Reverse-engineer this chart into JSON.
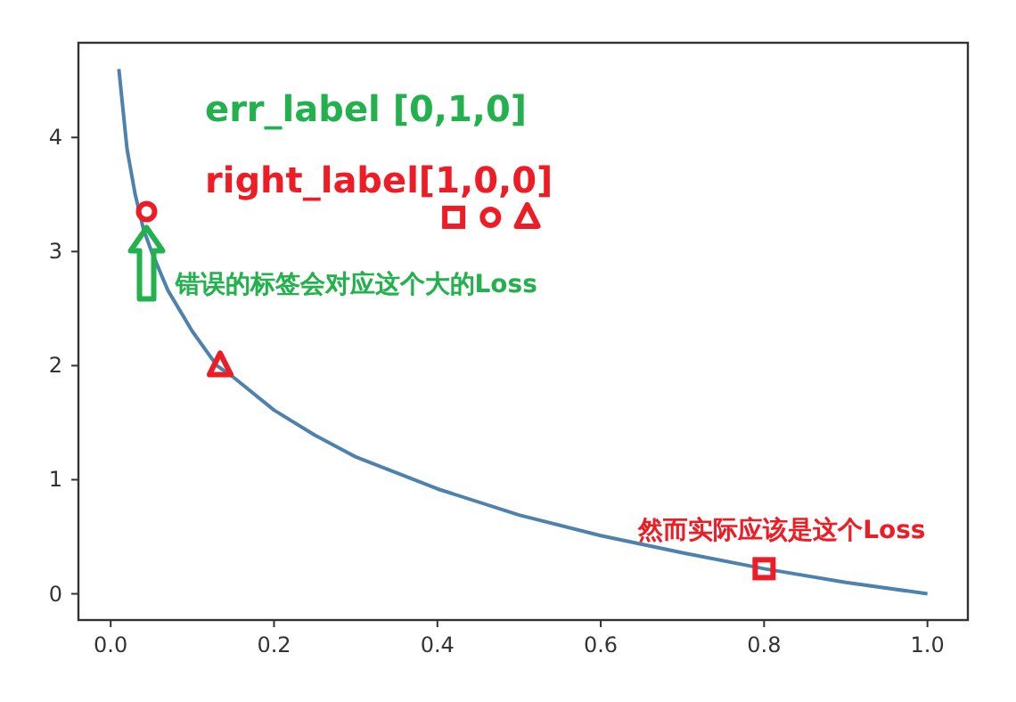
{
  "chart_data": {
    "type": "line",
    "xlim": [
      -0.0395,
      1.0495
    ],
    "ylim": [
      -0.23,
      4.83
    ],
    "xticks": [
      {
        "value": 0,
        "label": "0.0"
      },
      {
        "value": 0.2,
        "label": "0.2"
      },
      {
        "value": 0.4,
        "label": "0.4"
      },
      {
        "value": 0.6,
        "label": "0.6"
      },
      {
        "value": 0.8,
        "label": "0.8"
      },
      {
        "value": 1,
        "label": "1.0"
      }
    ],
    "yticks": [
      0,
      1,
      2,
      3,
      4
    ],
    "series": [
      {
        "color": "#4f81ad",
        "x": [
          0.01,
          0.02,
          0.03,
          0.04,
          0.05,
          0.07,
          0.1,
          0.13,
          0.15,
          0.2,
          0.25,
          0.3,
          0.4,
          0.5,
          0.6,
          0.7,
          0.8,
          0.9,
          1.0
        ],
        "values": [
          4.6,
          3.9,
          3.5,
          3.2,
          3.0,
          2.66,
          2.3,
          2.0,
          1.9,
          1.61,
          1.39,
          1.2,
          0.92,
          0.69,
          0.51,
          0.36,
          0.22,
          0.1,
          0.0
        ]
      },
      {
        "type": "scatter",
        "marker": "square",
        "color": "#ee1c25",
        "x": [
          0.42,
          0.8
        ],
        "values": [
          3.3,
          0.22
        ]
      },
      {
        "type": "scatter",
        "marker": "circle",
        "color": "#ee1c25",
        "x": [
          0.044,
          0.465
        ],
        "values": [
          3.35,
          3.3
        ]
      },
      {
        "type": "scatter",
        "marker": "triangle",
        "color": "#ee1c25",
        "x": [
          0.134,
          0.51
        ],
        "values": [
          2.0,
          3.3
        ]
      }
    ],
    "annotations": [
      "err_label [0,1,0]",
      "right_label[1,0,0]",
      {
        "text": "错误的标签会对应这个大的Loss",
        "x": 0.044,
        "y": 3.35
      },
      {
        "text": "然而实际应该是这个Loss",
        "x": 0.8,
        "y": 0.22
      }
    ]
  }
}
